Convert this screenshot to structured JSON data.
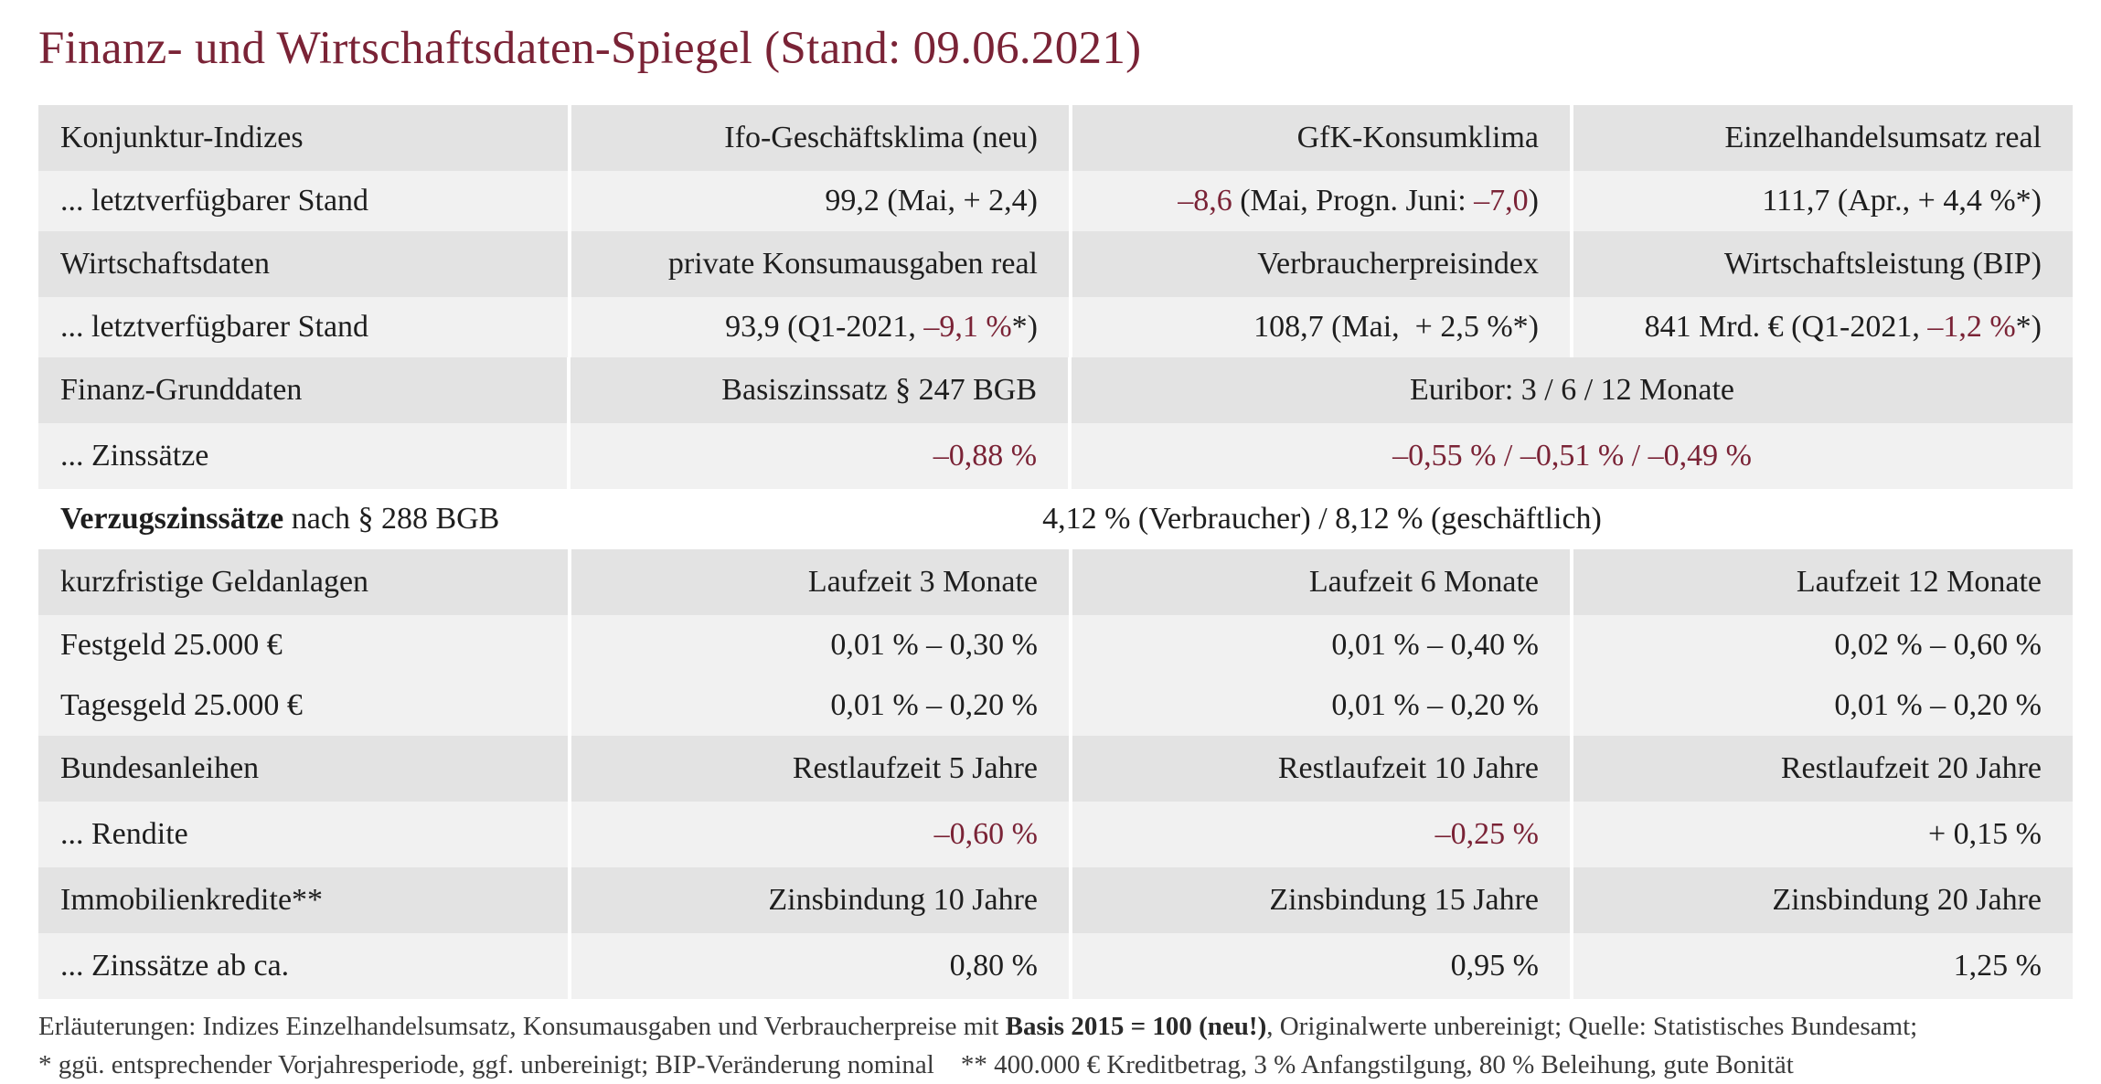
{
  "title": "Finanz- und Wirtschaftsdaten-Spiegel (Stand: 09.06.2021)",
  "colors": {
    "accent": "#7a2336",
    "header_bg": "#e3e3e3",
    "row_bg": "#f1f1f1"
  },
  "konjunktur": {
    "header": [
      "Konjunktur-Indizes",
      "Ifo-Geschäftsklima (neu)",
      "GfK-Konsumklima",
      "Einzelhandelsumsatz real"
    ],
    "label": "... letztverfügbarer Stand",
    "ifo": "99,2 (Mai, + 2,4)",
    "gfk_value": "–8,6",
    "gfk_mid": " (Mai, Progn. Juni: ",
    "gfk_prog": "–7,0",
    "gfk_end": ")",
    "einzelhandel": "111,7 (Apr., + 4,4 %*)"
  },
  "wirtschaft": {
    "header": [
      "Wirtschaftsdaten",
      "private Konsumausgaben real",
      "Verbraucherpreisindex",
      "Wirtschaftsleistung (BIP)"
    ],
    "label": "... letztverfügbarer Stand",
    "konsum_pre": "93,9 (Q1-2021, ",
    "konsum_red": "–9,1 %",
    "konsum_post": "*)",
    "vpi": "108,7 (Mai,  + 2,5 %*)",
    "bip_pre": "841 Mrd. € (Q1-2021, ",
    "bip_red": "–1,2 %",
    "bip_post": "*)"
  },
  "finanz": {
    "header": [
      "Finanz-Grunddaten",
      "Basiszinssatz § 247 BGB",
      "Euribor: 3 / 6 / 12 Monate"
    ],
    "label": "... Zinssätze",
    "basis": "–0,88 %",
    "euribor": "–0,55 % / –0,51 % / –0,49 %"
  },
  "verzug": {
    "label_bold": "Verzugszinssätze",
    "label_rest": " nach § 288 BGB",
    "value": "4,12 % (Verbraucher) / 8,12 % (geschäftlich)"
  },
  "geldanlagen": {
    "header": [
      "kurzfristige Geldanlagen",
      "Laufzeit 3 Monate",
      "Laufzeit 6 Monate",
      "Laufzeit 12 Monate"
    ],
    "rows": [
      [
        "Festgeld 25.000 €",
        "0,01 % – 0,30 %",
        "0,01 % – 0,40 %",
        "0,02 % – 0,60 %"
      ],
      [
        "Tagesgeld 25.000 €",
        "0,01 % – 0,20 %",
        "0,01 % – 0,20 %",
        "0,01 % – 0,20 %"
      ]
    ]
  },
  "anleihen": {
    "header": [
      "Bundesanleihen",
      "Restlaufzeit 5 Jahre",
      "Restlaufzeit 10 Jahre",
      "Restlaufzeit 20 Jahre"
    ],
    "label": "... Rendite",
    "values": [
      "–0,60 %",
      "–0,25 %",
      "+ 0,15 %"
    ]
  },
  "immobilien": {
    "header": [
      "Immobilienkredite**",
      "Zinsbindung 10 Jahre",
      "Zinsbindung 15 Jahre",
      "Zinsbindung 20 Jahre"
    ],
    "label": "... Zinssätze ab ca.",
    "values": [
      "0,80 %",
      "0,95 %",
      "1,25 %"
    ]
  },
  "notes": {
    "line1_pre": "Erläuterungen: Indizes Einzelhandelsumsatz, Konsumausgaben und Verbraucherpreise mit ",
    "line1_bold": "Basis 2015 = 100 (neu!)",
    "line1_post": ", Originalwerte unbereinigt; Quelle: Statistisches Bundesamt;",
    "line2": "* ggü. entsprechender Vorjahresperiode, ggf. unbereinigt; BIP-Veränderung nominal    ** 400.000 € Kreditbetrag, 3 % Anfangstilgung, 80 % Beleihung, gute Bonität"
  }
}
